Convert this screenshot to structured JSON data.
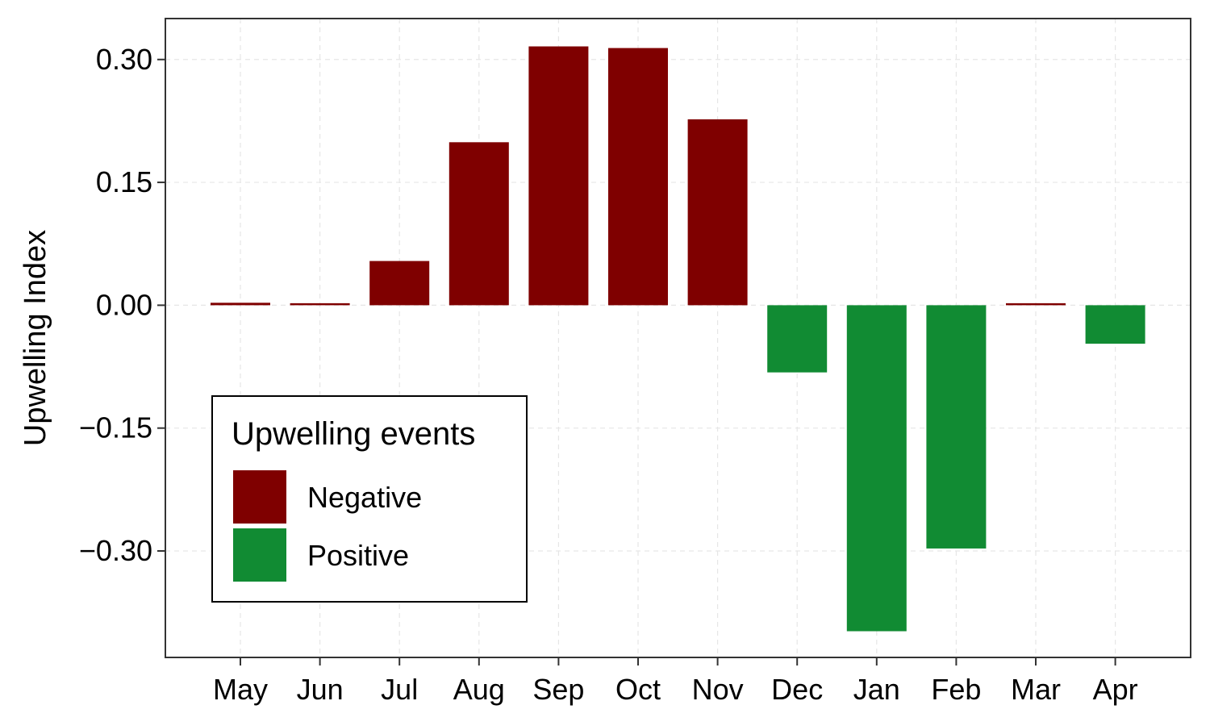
{
  "chart_data": {
    "type": "bar",
    "title": "",
    "xlabel": "",
    "ylabel": "Upwelling Index",
    "categories": [
      "May",
      "Jun",
      "Jul",
      "Aug",
      "Sep",
      "Oct",
      "Nov",
      "Dec",
      "Jan",
      "Feb",
      "Mar",
      "Apr"
    ],
    "values": [
      0.003,
      0.001,
      0.054,
      0.199,
      0.316,
      0.314,
      0.227,
      -0.082,
      -0.398,
      -0.297,
      0.002,
      -0.047
    ],
    "yticks": [
      0.3,
      0.15,
      0.0,
      -0.15,
      -0.3
    ],
    "ytick_labels": [
      "0.30",
      "0.15",
      "0.00",
      "−0.15",
      "−0.30"
    ],
    "ylim": [
      -0.43,
      0.35
    ],
    "grid": true,
    "legend": {
      "title": "Upwelling events",
      "placement": "bottom-left",
      "entries": [
        {
          "label": "Negative",
          "color": "#7f0000"
        },
        {
          "label": "Positive",
          "color": "#118b33"
        }
      ]
    },
    "colors": {
      "negative_event": "#7f0000",
      "positive_event": "#118b33"
    }
  }
}
